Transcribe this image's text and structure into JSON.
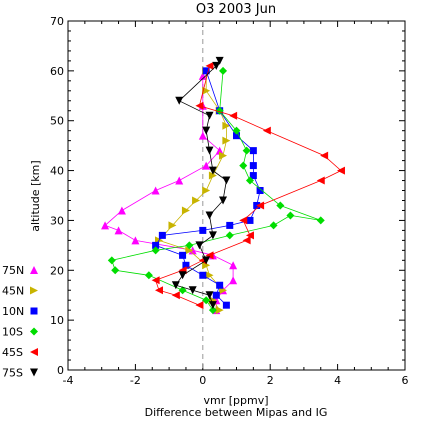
{
  "chart_data": {
    "type": "line",
    "title": "O3 2003 Jun",
    "xlabel": "vmr [ppmv]",
    "subtitle": "Difference between Mipas and IG",
    "ylabel": "altitude [km]",
    "xlim": [
      -4,
      6
    ],
    "ylim": [
      0,
      70
    ],
    "x_ticks": [
      "-4",
      "-2",
      "0",
      "2",
      "4",
      "6"
    ],
    "y_ticks": [
      "0",
      "10",
      "20",
      "30",
      "40",
      "50",
      "60",
      "70"
    ],
    "zero_line": {
      "x": 0,
      "style": "dashed",
      "color": "#999999"
    },
    "legend_position": "left",
    "series": [
      {
        "name": "75N",
        "color": "#ff00ff",
        "marker": "triangle-up",
        "points": [
          [
            0.4,
            12
          ],
          [
            0.4,
            14
          ],
          [
            0.6,
            16
          ],
          [
            0.9,
            18
          ],
          [
            0.9,
            21
          ],
          [
            0.3,
            23
          ],
          [
            -0.3,
            24
          ],
          [
            -2,
            26
          ],
          [
            -2.5,
            28
          ],
          [
            -2.9,
            29
          ],
          [
            -2.4,
            32
          ],
          [
            -1.4,
            36
          ],
          [
            -0.7,
            38
          ],
          [
            0.1,
            41
          ],
          [
            0.5,
            44
          ],
          [
            0,
            47
          ],
          [
            0,
            53
          ],
          [
            0,
            59
          ]
        ]
      },
      {
        "name": "45N",
        "color": "#c8b400",
        "marker": "triangle-right",
        "points": [
          [
            0.5,
            12
          ],
          [
            0.3,
            14
          ],
          [
            0.6,
            16
          ],
          [
            0.2,
            19
          ],
          [
            0.1,
            21
          ],
          [
            -0.4,
            24
          ],
          [
            -1.3,
            26
          ],
          [
            -0.9,
            29
          ],
          [
            -0.5,
            32
          ],
          [
            -0.2,
            34
          ],
          [
            0.1,
            36
          ],
          [
            0.3,
            39
          ],
          [
            0.6,
            43
          ],
          [
            0.7,
            46
          ],
          [
            0.7,
            49
          ],
          [
            0.5,
            52
          ],
          [
            0.1,
            56
          ],
          [
            0.1,
            60
          ]
        ]
      },
      {
        "name": "10N",
        "color": "#0000ff",
        "marker": "square",
        "points": [
          [
            0.7,
            13
          ],
          [
            0.4,
            15
          ],
          [
            0.5,
            17
          ],
          [
            0.0,
            19
          ],
          [
            -0.5,
            21
          ],
          [
            -0.6,
            23
          ],
          [
            -1.4,
            25
          ],
          [
            -1.2,
            27
          ],
          [
            0.0,
            28
          ],
          [
            0.8,
            29
          ],
          [
            1.4,
            30
          ],
          [
            1.6,
            33
          ],
          [
            1.7,
            36
          ],
          [
            1.5,
            39
          ],
          [
            1.5,
            41
          ],
          [
            1.5,
            44
          ],
          [
            1.0,
            47
          ],
          [
            0.5,
            52
          ],
          [
            0.1,
            60
          ]
        ]
      },
      {
        "name": "10S",
        "color": "#00dd00",
        "marker": "diamond",
        "points": [
          [
            0.3,
            12
          ],
          [
            0.1,
            14
          ],
          [
            -0.6,
            16
          ],
          [
            -1.6,
            19
          ],
          [
            -2.6,
            20
          ],
          [
            -2.7,
            22
          ],
          [
            -1.4,
            24
          ],
          [
            -0.4,
            25
          ],
          [
            0.8,
            27
          ],
          [
            2.1,
            29
          ],
          [
            2.6,
            31
          ],
          [
            3.5,
            30
          ],
          [
            2.3,
            33
          ],
          [
            1.4,
            38
          ],
          [
            1.2,
            41
          ],
          [
            1.3,
            44
          ],
          [
            1.0,
            48
          ],
          [
            0.5,
            52
          ],
          [
            0.6,
            60
          ]
        ]
      },
      {
        "name": "45S",
        "color": "#ff0000",
        "marker": "triangle-left",
        "points": [
          [
            -0.1,
            13
          ],
          [
            -0.8,
            15
          ],
          [
            -1.3,
            16
          ],
          [
            -1.4,
            18
          ],
          [
            -0.6,
            20
          ],
          [
            0.0,
            22
          ],
          [
            0.2,
            23
          ],
          [
            1.3,
            26
          ],
          [
            1.4,
            27
          ],
          [
            1.2,
            30
          ],
          [
            1.7,
            33
          ],
          [
            3.5,
            38
          ],
          [
            4.1,
            40
          ],
          [
            3.6,
            43
          ],
          [
            1.9,
            48
          ],
          [
            0.9,
            51
          ],
          [
            -0.1,
            53
          ],
          [
            0.2,
            61
          ]
        ]
      },
      {
        "name": "75S",
        "color": "#000000",
        "marker": "triangle-down",
        "points": [
          [
            0.3,
            13
          ],
          [
            0.2,
            15
          ],
          [
            -0.3,
            16
          ],
          [
            -0.8,
            17
          ],
          [
            -0.6,
            19
          ],
          [
            0.1,
            22
          ],
          [
            -0.1,
            25
          ],
          [
            0.3,
            27
          ],
          [
            0.2,
            31
          ],
          [
            0.6,
            34
          ],
          [
            0.7,
            38
          ],
          [
            0.3,
            40
          ],
          [
            0.2,
            44
          ],
          [
            0.1,
            48
          ],
          [
            0.2,
            51
          ],
          [
            -0.7,
            54
          ],
          [
            0.4,
            61
          ],
          [
            0.5,
            62
          ]
        ]
      }
    ]
  }
}
